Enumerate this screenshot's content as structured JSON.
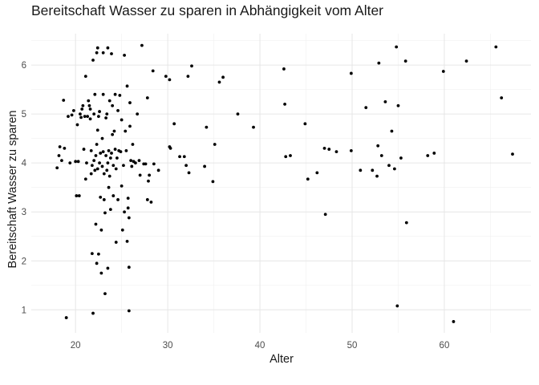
{
  "chart_data": {
    "type": "scatter",
    "title": "Bereitschaft Wasser zu sparen in Abhängigkeit vom Alter",
    "xlabel": "Alter",
    "ylabel": "Bereitschaft Wasser zu sparen",
    "xlim": [
      15.2,
      69.4
    ],
    "ylim": [
      0.53,
      6.64
    ],
    "x_ticks": [
      20,
      30,
      40,
      50,
      60
    ],
    "y_ticks": [
      1,
      2,
      3,
      4,
      5,
      6
    ],
    "grid": true,
    "point_color": "#000000",
    "points": [
      [
        18.0,
        3.9
      ],
      [
        18.2,
        4.15
      ],
      [
        18.3,
        4.33
      ],
      [
        18.5,
        4.05
      ],
      [
        18.7,
        5.28
      ],
      [
        18.8,
        4.3
      ],
      [
        19.0,
        0.84
      ],
      [
        19.2,
        4.95
      ],
      [
        19.4,
        4.0
      ],
      [
        19.6,
        4.98
      ],
      [
        19.8,
        5.07
      ],
      [
        20.0,
        4.03
      ],
      [
        20.1,
        3.33
      ],
      [
        20.2,
        4.78
      ],
      [
        20.3,
        4.03
      ],
      [
        20.4,
        3.33
      ],
      [
        20.5,
        5.0
      ],
      [
        20.6,
        4.93
      ],
      [
        20.7,
        5.1
      ],
      [
        20.8,
        5.17
      ],
      [
        20.9,
        4.28
      ],
      [
        21.0,
        4.95
      ],
      [
        21.1,
        3.67
      ],
      [
        21.2,
        4.0
      ],
      [
        21.3,
        4.95
      ],
      [
        21.4,
        5.27
      ],
      [
        21.5,
        5.17
      ],
      [
        21.6,
        4.9
      ],
      [
        21.6,
        5.1
      ],
      [
        21.7,
        3.78
      ],
      [
        21.7,
        4.25
      ],
      [
        21.8,
        3.95
      ],
      [
        21.8,
        2.15
      ],
      [
        21.9,
        0.93
      ],
      [
        22.0,
        5.0
      ],
      [
        22.0,
        4.05
      ],
      [
        22.1,
        3.85
      ],
      [
        22.1,
        5.4
      ],
      [
        22.2,
        4.15
      ],
      [
        22.2,
        2.75
      ],
      [
        22.3,
        4.38
      ],
      [
        22.3,
        1.95
      ],
      [
        22.4,
        4.67
      ],
      [
        22.4,
        3.88
      ],
      [
        22.5,
        2.14
      ],
      [
        22.5,
        4.95
      ],
      [
        22.6,
        5.05
      ],
      [
        22.6,
        4.0
      ],
      [
        22.7,
        4.2
      ],
      [
        22.7,
        3.3
      ],
      [
        22.8,
        2.63
      ],
      [
        22.8,
        1.75
      ],
      [
        22.9,
        3.93
      ],
      [
        22.9,
        4.5
      ],
      [
        23.0,
        4.23
      ],
      [
        23.0,
        5.4
      ],
      [
        23.1,
        3.78
      ],
      [
        23.1,
        3.25
      ],
      [
        23.2,
        1.33
      ],
      [
        23.2,
        2.98
      ],
      [
        23.3,
        4.15
      ],
      [
        23.3,
        4.92
      ],
      [
        23.4,
        5.0
      ],
      [
        23.4,
        3.85
      ],
      [
        23.5,
        1.85
      ],
      [
        23.5,
        4.0
      ],
      [
        23.6,
        3.5
      ],
      [
        23.6,
        4.25
      ],
      [
        23.7,
        5.27
      ],
      [
        23.7,
        3.73
      ],
      [
        23.8,
        4.1
      ],
      [
        23.8,
        3.05
      ],
      [
        23.9,
        4.2
      ],
      [
        24.0,
        4.58
      ],
      [
        24.0,
        5.17
      ],
      [
        24.1,
        3.95
      ],
      [
        24.1,
        3.33
      ],
      [
        24.2,
        4.65
      ],
      [
        24.3,
        5.4
      ],
      [
        24.3,
        4.28
      ],
      [
        24.4,
        3.88
      ],
      [
        24.4,
        2.38
      ],
      [
        24.5,
        4.1
      ],
      [
        24.6,
        5.07
      ],
      [
        24.6,
        3.25
      ],
      [
        24.7,
        4.25
      ],
      [
        24.8,
        5.38
      ],
      [
        24.9,
        4.23
      ],
      [
        25.0,
        4.88
      ],
      [
        25.0,
        3.53
      ],
      [
        25.1,
        2.63
      ],
      [
        25.2,
        3.95
      ],
      [
        25.3,
        3.0
      ],
      [
        25.4,
        4.65
      ],
      [
        25.5,
        4.25
      ],
      [
        25.6,
        5.57
      ],
      [
        25.6,
        2.4
      ],
      [
        25.7,
        3.28
      ],
      [
        25.7,
        3.08
      ],
      [
        25.8,
        2.88
      ],
      [
        25.8,
        1.87
      ],
      [
        25.8,
        0.98
      ],
      [
        25.9,
        5.23
      ],
      [
        25.9,
        4.75
      ],
      [
        26.0,
        4.05
      ],
      [
        26.1,
        3.93
      ],
      [
        26.2,
        4.38
      ],
      [
        26.3,
        4.03
      ],
      [
        26.5,
        4.0
      ],
      [
        26.7,
        5.0
      ],
      [
        26.9,
        4.05
      ],
      [
        27.0,
        3.75
      ],
      [
        27.2,
        6.4
      ],
      [
        27.4,
        3.98
      ],
      [
        27.6,
        3.98
      ],
      [
        27.8,
        3.25
      ],
      [
        27.9,
        3.63
      ],
      [
        28.0,
        3.75
      ],
      [
        28.2,
        3.2
      ],
      [
        28.5,
        3.98
      ],
      [
        29.0,
        3.85
      ],
      [
        21.1,
        5.77
      ],
      [
        21.9,
        6.1
      ],
      [
        22.3,
        6.25
      ],
      [
        22.4,
        6.35
      ],
      [
        23.0,
        6.25
      ],
      [
        23.5,
        6.35
      ],
      [
        23.9,
        6.23
      ],
      [
        25.3,
        6.2
      ],
      [
        27.8,
        5.33
      ],
      [
        28.4,
        5.88
      ],
      [
        29.8,
        5.77
      ],
      [
        30.2,
        5.7
      ],
      [
        30.2,
        4.33
      ],
      [
        30.3,
        4.3
      ],
      [
        30.7,
        4.8
      ],
      [
        31.3,
        4.13
      ],
      [
        31.8,
        4.13
      ],
      [
        32.0,
        3.95
      ],
      [
        32.2,
        5.77
      ],
      [
        32.3,
        3.8
      ],
      [
        32.6,
        5.98
      ],
      [
        34.0,
        3.93
      ],
      [
        34.2,
        4.73
      ],
      [
        34.9,
        3.62
      ],
      [
        35.1,
        4.38
      ],
      [
        35.6,
        5.65
      ],
      [
        36.0,
        5.75
      ],
      [
        37.6,
        5.0
      ],
      [
        39.3,
        4.73
      ],
      [
        42.6,
        5.92
      ],
      [
        42.7,
        5.2
      ],
      [
        42.8,
        4.13
      ],
      [
        43.3,
        4.15
      ],
      [
        44.9,
        4.8
      ],
      [
        45.2,
        3.67
      ],
      [
        46.2,
        3.8
      ],
      [
        47.0,
        4.3
      ],
      [
        47.1,
        2.95
      ],
      [
        47.5,
        4.28
      ],
      [
        48.3,
        4.23
      ],
      [
        49.9,
        4.25
      ],
      [
        49.9,
        5.83
      ],
      [
        50.9,
        3.85
      ],
      [
        51.5,
        5.13
      ],
      [
        52.2,
        3.85
      ],
      [
        52.7,
        3.73
      ],
      [
        52.8,
        4.35
      ],
      [
        52.9,
        6.04
      ],
      [
        53.2,
        4.15
      ],
      [
        53.6,
        5.25
      ],
      [
        54.0,
        3.95
      ],
      [
        54.3,
        4.65
      ],
      [
        54.6,
        3.88
      ],
      [
        54.8,
        6.37
      ],
      [
        54.9,
        1.08
      ],
      [
        55.0,
        5.17
      ],
      [
        55.3,
        4.1
      ],
      [
        55.8,
        6.08
      ],
      [
        55.9,
        2.78
      ],
      [
        58.2,
        4.15
      ],
      [
        58.9,
        4.2
      ],
      [
        59.9,
        5.87
      ],
      [
        61.0,
        0.76
      ],
      [
        62.4,
        6.08
      ],
      [
        65.6,
        6.37
      ],
      [
        66.2,
        5.33
      ],
      [
        67.4,
        4.18
      ]
    ]
  }
}
